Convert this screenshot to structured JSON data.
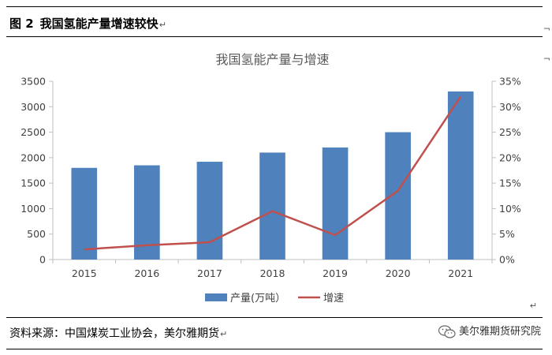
{
  "figure": {
    "number": "图 2",
    "title": "我国氢能产量增速较快",
    "paragraph_mark": "↵"
  },
  "source": {
    "label": "资料来源：",
    "text": "中国煤炭工业协会，美尔雅期货",
    "paragraph_mark": "↵"
  },
  "watermark": {
    "icon": "wechat-icon",
    "text": "美尔雅期货研究院"
  },
  "chart_data": {
    "type": "bar",
    "title": "我国氢能产量与增速",
    "categories": [
      "2015",
      "2016",
      "2017",
      "2018",
      "2019",
      "2020",
      "2021"
    ],
    "series": [
      {
        "name": "产量(万吨）",
        "type": "bar",
        "axis": "left",
        "color": "#4f81bd",
        "values": [
          1800,
          1850,
          1920,
          2100,
          2200,
          2500,
          3300
        ]
      },
      {
        "name": "增速",
        "type": "line",
        "axis": "right",
        "color": "#c0504d",
        "values": [
          0.02,
          0.028,
          0.034,
          0.095,
          0.048,
          0.135,
          0.32
        ]
      }
    ],
    "ylim_left": [
      0,
      3500
    ],
    "ylim_right": [
      0,
      0.35
    ],
    "yticks_left": [
      "0",
      "500",
      "1000",
      "1500",
      "2000",
      "2500",
      "3000",
      "3500"
    ],
    "yticks_right": [
      "0%",
      "5%",
      "10%",
      "15%",
      "20%",
      "25%",
      "30%",
      "35%"
    ],
    "grid": false,
    "legend_position": "bottom"
  }
}
